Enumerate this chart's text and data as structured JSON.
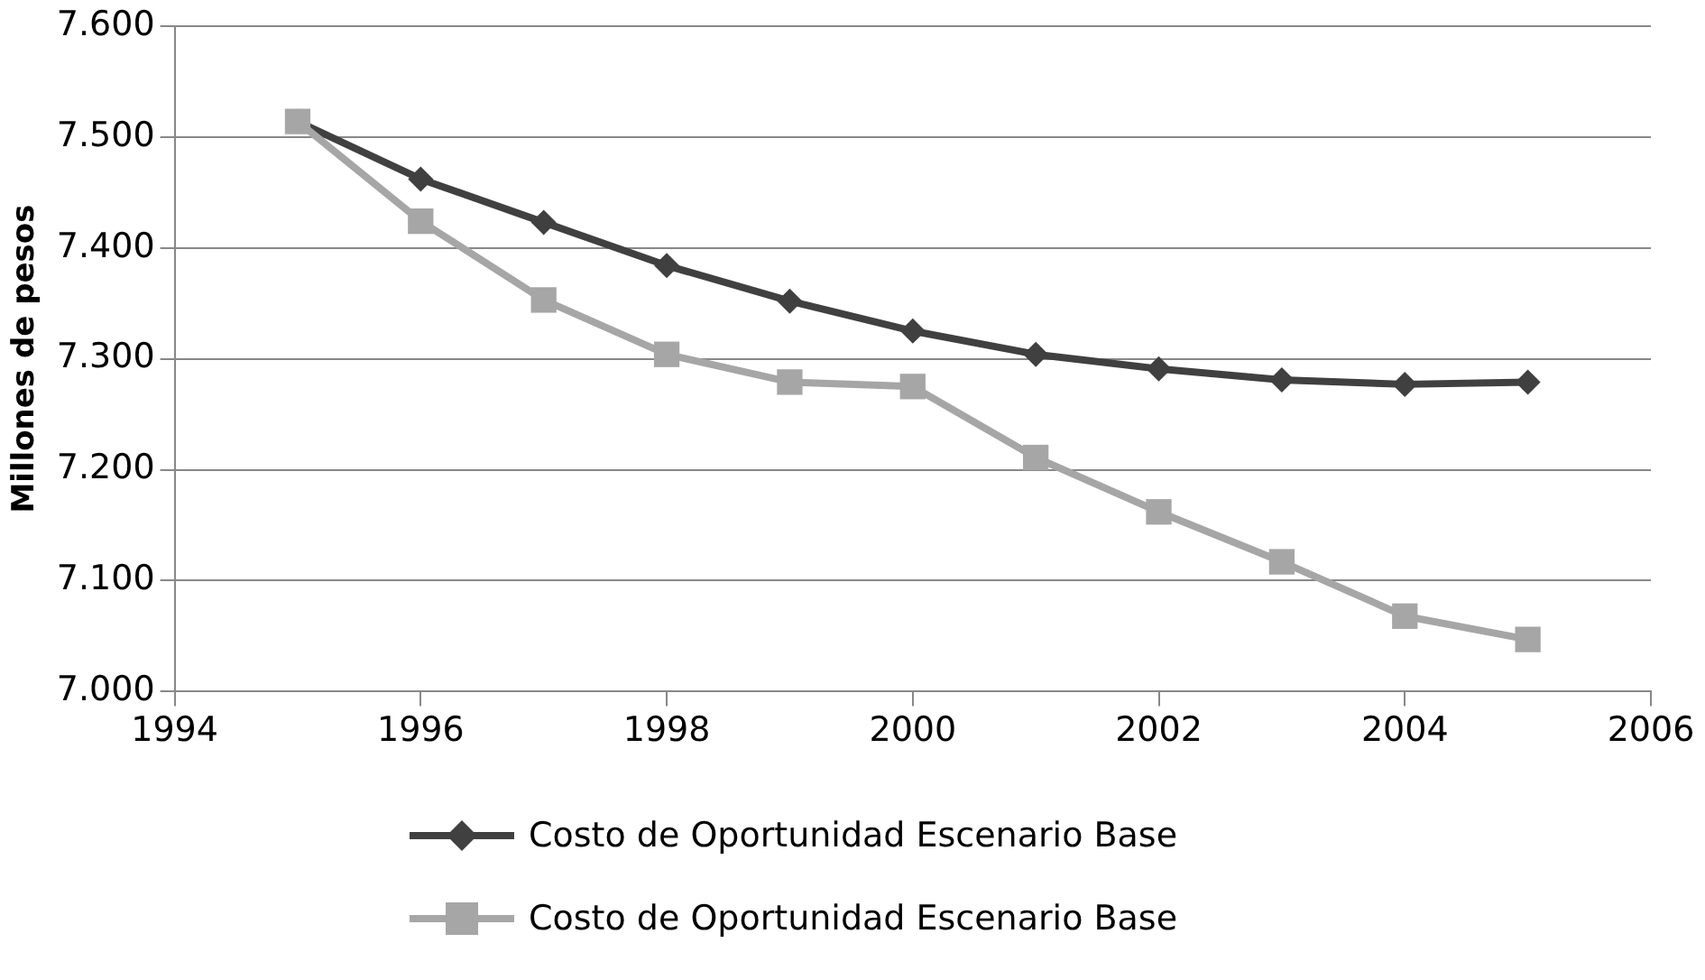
{
  "chart_data": {
    "type": "line",
    "ylabel": "Millones de pesos",
    "x": [
      1995,
      1996,
      1997,
      1998,
      1999,
      2000,
      2001,
      2002,
      2003,
      2004,
      2005
    ],
    "series": [
      {
        "name": "Costo de Oportunidad Escenario Base",
        "color": "#404040",
        "marker": "diamond",
        "values": [
          7514,
          7462,
          7423,
          7384,
          7352,
          7325,
          7304,
          7291,
          7281,
          7277,
          7279
        ]
      },
      {
        "name": "Costo de Oportunidad Escenario Base",
        "color": "#a6a6a6",
        "marker": "square",
        "values": [
          7514,
          7424,
          7353,
          7304,
          7279,
          7275,
          7211,
          7162,
          7117,
          7068,
          7047
        ]
      }
    ],
    "xlim": [
      1994,
      2006
    ],
    "xticks": [
      1994,
      1996,
      1998,
      2000,
      2002,
      2004,
      2006
    ],
    "ylim": [
      7000,
      7600
    ],
    "yticks": [
      {
        "value": 7000,
        "label": "7.000"
      },
      {
        "value": 7100,
        "label": "7.100"
      },
      {
        "value": 7200,
        "label": "7.200"
      },
      {
        "value": 7300,
        "label": "7.300"
      },
      {
        "value": 7400,
        "label": "7.400"
      },
      {
        "value": 7500,
        "label": "7.500"
      },
      {
        "value": 7600,
        "label": "7.600"
      }
    ],
    "grid": "y",
    "legend": "bottom",
    "line_style": "solid"
  }
}
